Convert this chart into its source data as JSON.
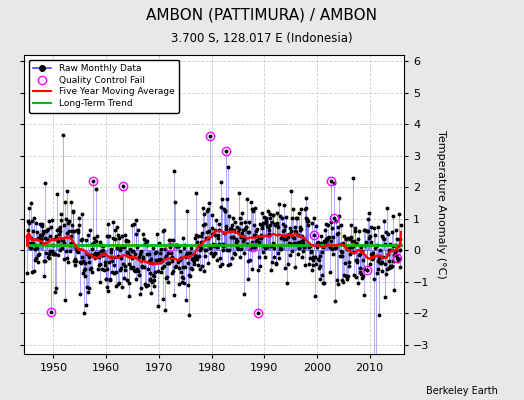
{
  "title": "AMBON (PATTIMURA) / AMBON",
  "subtitle": "3.700 S, 128.017 E (Indonesia)",
  "ylabel": "Temperature Anomaly (°C)",
  "watermark": "Berkeley Earth",
  "xlim": [
    1944.5,
    2016.5
  ],
  "ylim": [
    -3.3,
    6.2
  ],
  "yticks": [
    -3,
    -2,
    -1,
    0,
    1,
    2,
    3,
    4,
    5,
    6
  ],
  "xticks": [
    1950,
    1960,
    1970,
    1980,
    1990,
    2000,
    2010
  ],
  "bg_color": "#e8e8e8",
  "plot_bg": "#ffffff",
  "line_color": "#4444ff",
  "marker_color": "#000000",
  "trend_color": "#00bb00",
  "moving_avg_color": "#ff0000",
  "qc_color": "#ff00ff",
  "years_start": 1945,
  "years_end": 2016
}
